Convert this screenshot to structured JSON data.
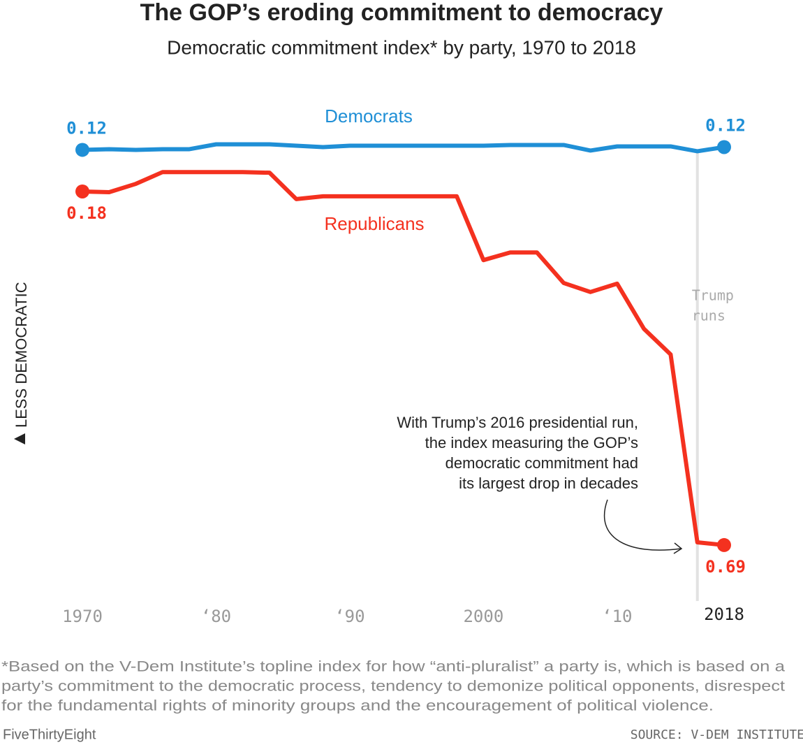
{
  "chart_data": {
    "type": "line",
    "title": "The GOP’s eroding commitment to democracy",
    "subtitle": "Democratic commitment index* by party, 1970 to 2018",
    "y_label": "LESS DEMOCRATIC",
    "y_inverted": true,
    "x": [
      1970,
      1972,
      1974,
      1976,
      1978,
      1980,
      1982,
      1984,
      1986,
      1988,
      1990,
      1992,
      1994,
      1996,
      1998,
      2000,
      2002,
      2004,
      2006,
      2008,
      2010,
      2012,
      2014,
      2016,
      2018
    ],
    "xlim": [
      1970,
      2018
    ],
    "xticks": [
      1970,
      {
        "value": 1980,
        "label": "‘80"
      },
      {
        "value": 1990,
        "label": "‘90"
      },
      2000,
      {
        "value": 2010,
        "label": "‘10"
      },
      2018
    ],
    "ylim": [
      0.1,
      0.72
    ],
    "series": [
      {
        "name": "Democrats",
        "color": "#1f8fd6",
        "values": [
          0.12,
          0.119,
          0.12,
          0.119,
          0.119,
          0.112,
          0.112,
          0.112,
          0.114,
          0.116,
          0.114,
          0.114,
          0.114,
          0.114,
          0.114,
          0.114,
          0.113,
          0.113,
          0.113,
          0.121,
          0.115,
          0.115,
          0.115,
          0.122,
          0.116
        ],
        "value_labels": [
          "0.12",
          null,
          null,
          null,
          null,
          null,
          null,
          null,
          null,
          null,
          null,
          null,
          null,
          null,
          null,
          null,
          null,
          null,
          null,
          null,
          null,
          null,
          null,
          null,
          "0.12"
        ]
      },
      {
        "name": "Republicans",
        "color": "#f4311f",
        "values": [
          0.18,
          0.181,
          0.169,
          0.152,
          0.152,
          0.152,
          0.152,
          0.153,
          0.191,
          0.187,
          0.187,
          0.187,
          0.187,
          0.187,
          0.187,
          0.279,
          0.268,
          0.268,
          0.312,
          0.325,
          0.313,
          0.378,
          0.415,
          0.686,
          0.69
        ],
        "value_labels": [
          "0.18",
          null,
          null,
          null,
          null,
          null,
          null,
          null,
          null,
          null,
          null,
          null,
          null,
          null,
          null,
          null,
          null,
          null,
          null,
          null,
          null,
          null,
          null,
          null,
          "0.69"
        ]
      }
    ],
    "event": {
      "x": 2016,
      "label_lines": [
        "Trump",
        "runs"
      ]
    },
    "annotation": {
      "lines": [
        "With Trump’s 2016 presidential run,",
        "the index measuring the GOP’s",
        "democratic commitment had",
        "its largest drop in decades"
      ]
    },
    "footnote": [
      "*Based on the V-Dem Institute’s topline index for how “anti-pluralist” a party is, which is based on a",
      "party’s commitment to the democratic process, tendency to demonize political opponents, disrespect",
      "for the fundamental rights of minority groups and the encouragement of political violence."
    ],
    "brand": "FiveThirtyEight",
    "source": "SOURCE: V-DEM INSTITUTE"
  }
}
